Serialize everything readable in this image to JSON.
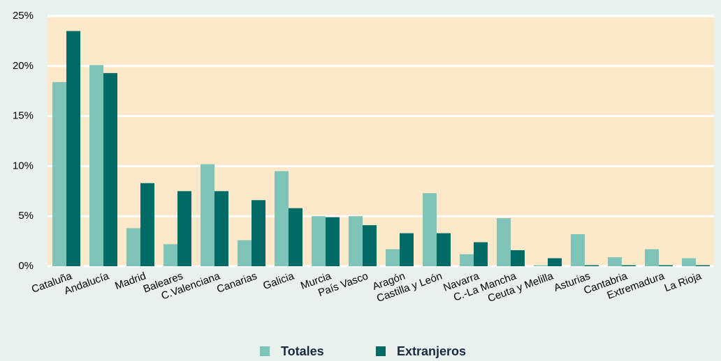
{
  "chart_data": {
    "type": "bar",
    "categories": [
      "Cataluña",
      "Andalucía",
      "Madrid",
      "Baleares",
      "C.Valenciana",
      "Canarias",
      "Galicia",
      "Murcia",
      "País Vasco",
      "Aragón",
      "Castilla y León",
      "Navarra",
      "C.-La Mancha",
      "Ceuta y Melilla",
      "Asturias",
      "Cantabria",
      "Extremadura",
      "La Rioja"
    ],
    "series": [
      {
        "name": "Totales",
        "color": "#7fc4b8",
        "values": [
          18.4,
          20.1,
          3.8,
          2.2,
          10.2,
          2.6,
          9.5,
          5.0,
          5.0,
          1.7,
          7.3,
          1.2,
          4.8,
          0.1,
          3.2,
          0.9,
          1.7,
          0.8
        ]
      },
      {
        "name": "Extranjeros",
        "color": "#006a66",
        "values": [
          23.5,
          19.3,
          8.3,
          7.5,
          7.5,
          6.6,
          5.8,
          4.9,
          4.1,
          3.3,
          3.3,
          2.4,
          1.6,
          0.8,
          0.1,
          0.1,
          0.1,
          0.1
        ]
      }
    ],
    "ylim": [
      0,
      25
    ],
    "yticks": [
      {
        "value": 0,
        "label": "0%"
      },
      {
        "value": 5,
        "label": "5%"
      },
      {
        "value": 10,
        "label": "10%"
      },
      {
        "value": 15,
        "label": "15%"
      },
      {
        "value": 20,
        "label": "20%"
      },
      {
        "value": 25,
        "label": "25%"
      }
    ],
    "grid": true
  }
}
